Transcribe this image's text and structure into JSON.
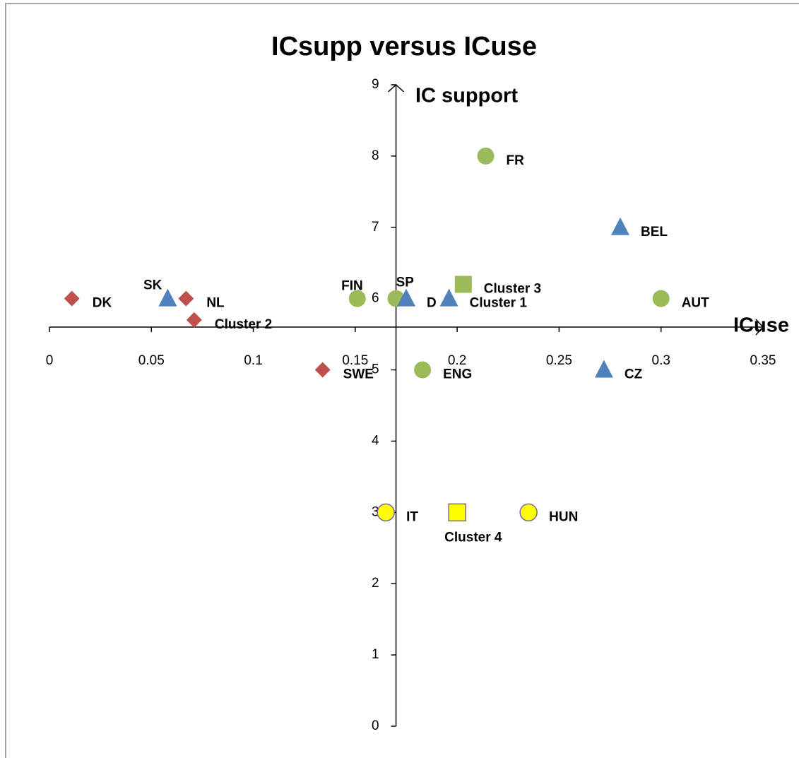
{
  "chart_data": {
    "type": "scatter",
    "title": "ICsupp versus ICuse",
    "x_label": "ICuse",
    "y_label": "IC support",
    "xlim": [
      0,
      0.35
    ],
    "ylim": [
      0,
      9
    ],
    "xticks": [
      0,
      0.05,
      0.1,
      0.15,
      0.2,
      0.25,
      0.3,
      0.35
    ],
    "yticks": [
      0,
      1,
      2,
      3,
      4,
      5,
      6,
      7,
      8,
      9
    ],
    "x_axis_at_y": 5.6,
    "y_axis_at_x": 0.17,
    "series": [
      {
        "marker": "circle",
        "color": "#9bbb59",
        "x": [
          0.214,
          0.151,
          0.17,
          0.3,
          0.183
        ],
        "y": [
          8,
          6,
          6,
          6,
          5
        ],
        "labels": [
          "FR",
          "FIN",
          "SP",
          "AUT",
          "ENG"
        ]
      },
      {
        "marker": "square",
        "color": "#9bbb59",
        "x": [
          0.203
        ],
        "y": [
          6.2
        ],
        "labels": [
          "Cluster 3"
        ]
      },
      {
        "marker": "triangle",
        "color": "#4f81bd",
        "x": [
          0.058,
          0.175,
          0.28,
          0.272,
          0.196
        ],
        "y": [
          6,
          6,
          7,
          5,
          6
        ],
        "labels": [
          "SK",
          "D",
          "BEL",
          "CZ",
          "Cluster 1"
        ]
      },
      {
        "marker": "diamond",
        "color": "#c0504d",
        "x": [
          0.011,
          0.067,
          0.134,
          0.071
        ],
        "y": [
          6,
          6,
          5,
          5.7
        ],
        "labels": [
          "DK",
          "NL",
          "SWE",
          "Cluster 2"
        ]
      },
      {
        "marker": "circle",
        "color": "#ffff00",
        "stroke": "#8064a2",
        "x": [
          0.165,
          0.235
        ],
        "y": [
          3,
          3
        ],
        "labels": [
          "IT",
          "HUN"
        ]
      },
      {
        "marker": "square",
        "color": "#ffff00",
        "stroke": "#8064a2",
        "x": [
          0.2
        ],
        "y": [
          3
        ],
        "labels": [
          "Cluster 4"
        ]
      }
    ]
  }
}
